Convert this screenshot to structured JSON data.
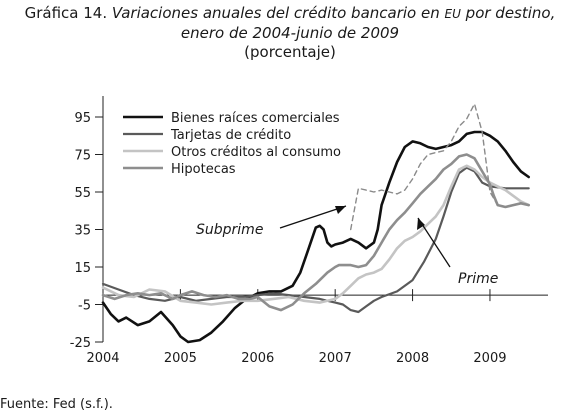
{
  "title": {
    "prefix": "Gráfica 14.",
    "line1_italic": "Variaciones anuales del crédito bancario en",
    "eu": "EU",
    "line1_end": "por destino,",
    "line2": "enero de 2004-junio de 2009",
    "line3": "(porcentaje)"
  },
  "source": "Fuente: Fed (s.f.).",
  "annotations": {
    "subprime": "Subprime",
    "prime": "Prime"
  },
  "chart_data": {
    "type": "line",
    "title": "Variaciones anuales del crédito bancario en EU por destino, enero de 2004-junio de 2009",
    "subtitle": "(porcentaje)",
    "xlabel": "",
    "ylabel": "",
    "x_ticks": [
      "2004",
      "2005",
      "2006",
      "2007",
      "2008",
      "2009"
    ],
    "y_ticks": [
      95,
      75,
      55,
      35,
      15,
      -5,
      -25
    ],
    "xlim": [
      2004.0,
      2009.75
    ],
    "ylim": [
      -25,
      100
    ],
    "grid": false,
    "legend_position": "top-left",
    "series": [
      {
        "name": "Bienes raíces comerciales",
        "color": "#111111",
        "width": 2.6,
        "dash": "",
        "x": [
          2004.0,
          2004.1,
          2004.2,
          2004.3,
          2004.45,
          2004.6,
          2004.75,
          2004.9,
          2005.0,
          2005.1,
          2005.25,
          2005.4,
          2005.55,
          2005.7,
          2005.85,
          2006.0,
          2006.15,
          2006.3,
          2006.45,
          2006.55,
          2006.65,
          2006.75,
          2006.8,
          2006.85,
          2006.9,
          2006.95,
          2007.0,
          2007.1,
          2007.2,
          2007.3,
          2007.4,
          2007.5,
          2007.55,
          2007.6,
          2007.7,
          2007.8,
          2007.9,
          2008.0,
          2008.1,
          2008.2,
          2008.3,
          2008.4,
          2008.5,
          2008.6,
          2008.7,
          2008.8,
          2008.9,
          2009.0,
          2009.1,
          2009.2,
          2009.3,
          2009.4,
          2009.5
        ],
        "y": [
          -4,
          -10,
          -14,
          -12,
          -16,
          -14,
          -9,
          -16,
          -22,
          -25,
          -24,
          -20,
          -14,
          -7,
          -2,
          1,
          2,
          2,
          5,
          12,
          24,
          36,
          37,
          35,
          28,
          26,
          27,
          28,
          30,
          28,
          25,
          28,
          35,
          48,
          60,
          71,
          79,
          82,
          81,
          79,
          78,
          79,
          80,
          82,
          86,
          87,
          87,
          85,
          82,
          77,
          71,
          66,
          63
        ]
      },
      {
        "name": "Tarjetas de crédito",
        "color": "#5a5a5a",
        "width": 2.2,
        "dash": "",
        "x": [
          2004.0,
          2004.2,
          2004.4,
          2004.6,
          2004.8,
          2005.0,
          2005.2,
          2005.4,
          2005.6,
          2005.8,
          2006.0,
          2006.2,
          2006.4,
          2006.6,
          2006.8,
          2006.9,
          2007.0,
          2007.1,
          2007.2,
          2007.3,
          2007.4,
          2007.5,
          2007.6,
          2007.8,
          2008.0,
          2008.15,
          2008.3,
          2008.4,
          2008.5,
          2008.6,
          2008.7,
          2008.8,
          2008.9,
          2009.0,
          2009.2,
          2009.5
        ],
        "y": [
          6,
          3,
          0,
          -2,
          -3,
          -1,
          -3,
          -2,
          -1,
          -1,
          0,
          1,
          0,
          -1,
          -2,
          -3,
          -4,
          -5,
          -8,
          -9,
          -6,
          -3,
          -1,
          2,
          8,
          18,
          30,
          42,
          55,
          65,
          68,
          66,
          60,
          58,
          57,
          57
        ]
      },
      {
        "name": "Otros créditos al consumo",
        "color": "#c4c4c4",
        "width": 2.6,
        "dash": "",
        "x": [
          2004.0,
          2004.2,
          2004.4,
          2004.6,
          2004.8,
          2005.0,
          2005.2,
          2005.4,
          2005.6,
          2005.8,
          2006.0,
          2006.2,
          2006.4,
          2006.6,
          2006.8,
          2007.0,
          2007.1,
          2007.2,
          2007.3,
          2007.4,
          2007.5,
          2007.6,
          2007.7,
          2007.8,
          2007.9,
          2008.0,
          2008.1,
          2008.2,
          2008.3,
          2008.4,
          2008.5,
          2008.6,
          2008.7,
          2008.8,
          2008.9,
          2009.0,
          2009.1,
          2009.2,
          2009.3,
          2009.4,
          2009.5
        ],
        "y": [
          4,
          0,
          -1,
          3,
          2,
          -3,
          -4,
          -5,
          -4,
          -3,
          -3,
          -2,
          -1,
          -3,
          -4,
          -2,
          1,
          5,
          9,
          11,
          12,
          14,
          19,
          25,
          29,
          31,
          34,
          38,
          42,
          48,
          58,
          67,
          69,
          67,
          63,
          60,
          58,
          56,
          53,
          50,
          48
        ]
      },
      {
        "name": "Hipotecas",
        "color": "#8e8e8e",
        "width": 2.6,
        "dash": "",
        "x": [
          2004.0,
          2004.15,
          2004.3,
          2004.45,
          2004.6,
          2004.75,
          2004.9,
          2005.0,
          2005.15,
          2005.3,
          2005.45,
          2005.6,
          2005.75,
          2005.9,
          2006.0,
          2006.15,
          2006.3,
          2006.45,
          2006.6,
          2006.75,
          2006.9,
          2007.0,
          2007.05,
          2007.1,
          2007.2,
          2007.3,
          2007.4,
          2007.5,
          2007.6,
          2007.7,
          2007.8,
          2007.9,
          2008.0,
          2008.1,
          2008.2,
          2008.3,
          2008.4,
          2008.5,
          2008.6,
          2008.7,
          2008.8,
          2008.9,
          2009.0,
          2009.05,
          2009.1,
          2009.2,
          2009.3,
          2009.4,
          2009.5
        ],
        "y": [
          0,
          -2,
          0,
          1,
          0,
          1,
          -2,
          0,
          2,
          0,
          -1,
          0,
          -2,
          -2,
          -1,
          -6,
          -8,
          -5,
          1,
          6,
          12,
          15,
          16,
          16,
          16,
          15,
          16,
          21,
          28,
          35,
          40,
          44,
          49,
          54,
          58,
          62,
          67,
          70,
          74,
          75,
          73,
          66,
          59,
          53,
          48,
          47,
          48,
          49,
          48
        ]
      },
      {
        "name": "",
        "color": "#8a8a8a",
        "width": 1.4,
        "dash": "5,4",
        "x": [
          2007.2,
          2007.3,
          2007.4,
          2007.5,
          2007.6,
          2007.7,
          2007.8,
          2007.9,
          2008.0,
          2008.1,
          2008.2,
          2008.3,
          2008.4,
          2008.5,
          2008.6,
          2008.7,
          2008.8,
          2008.9,
          2009.0,
          2009.1,
          2009.2,
          2009.3,
          2009.4
        ],
        "y": [
          35,
          57,
          56,
          55,
          56,
          55,
          54,
          56,
          62,
          70,
          75,
          76,
          77,
          82,
          90,
          94,
          102,
          87,
          55,
          48,
          47,
          48,
          49
        ]
      }
    ]
  }
}
